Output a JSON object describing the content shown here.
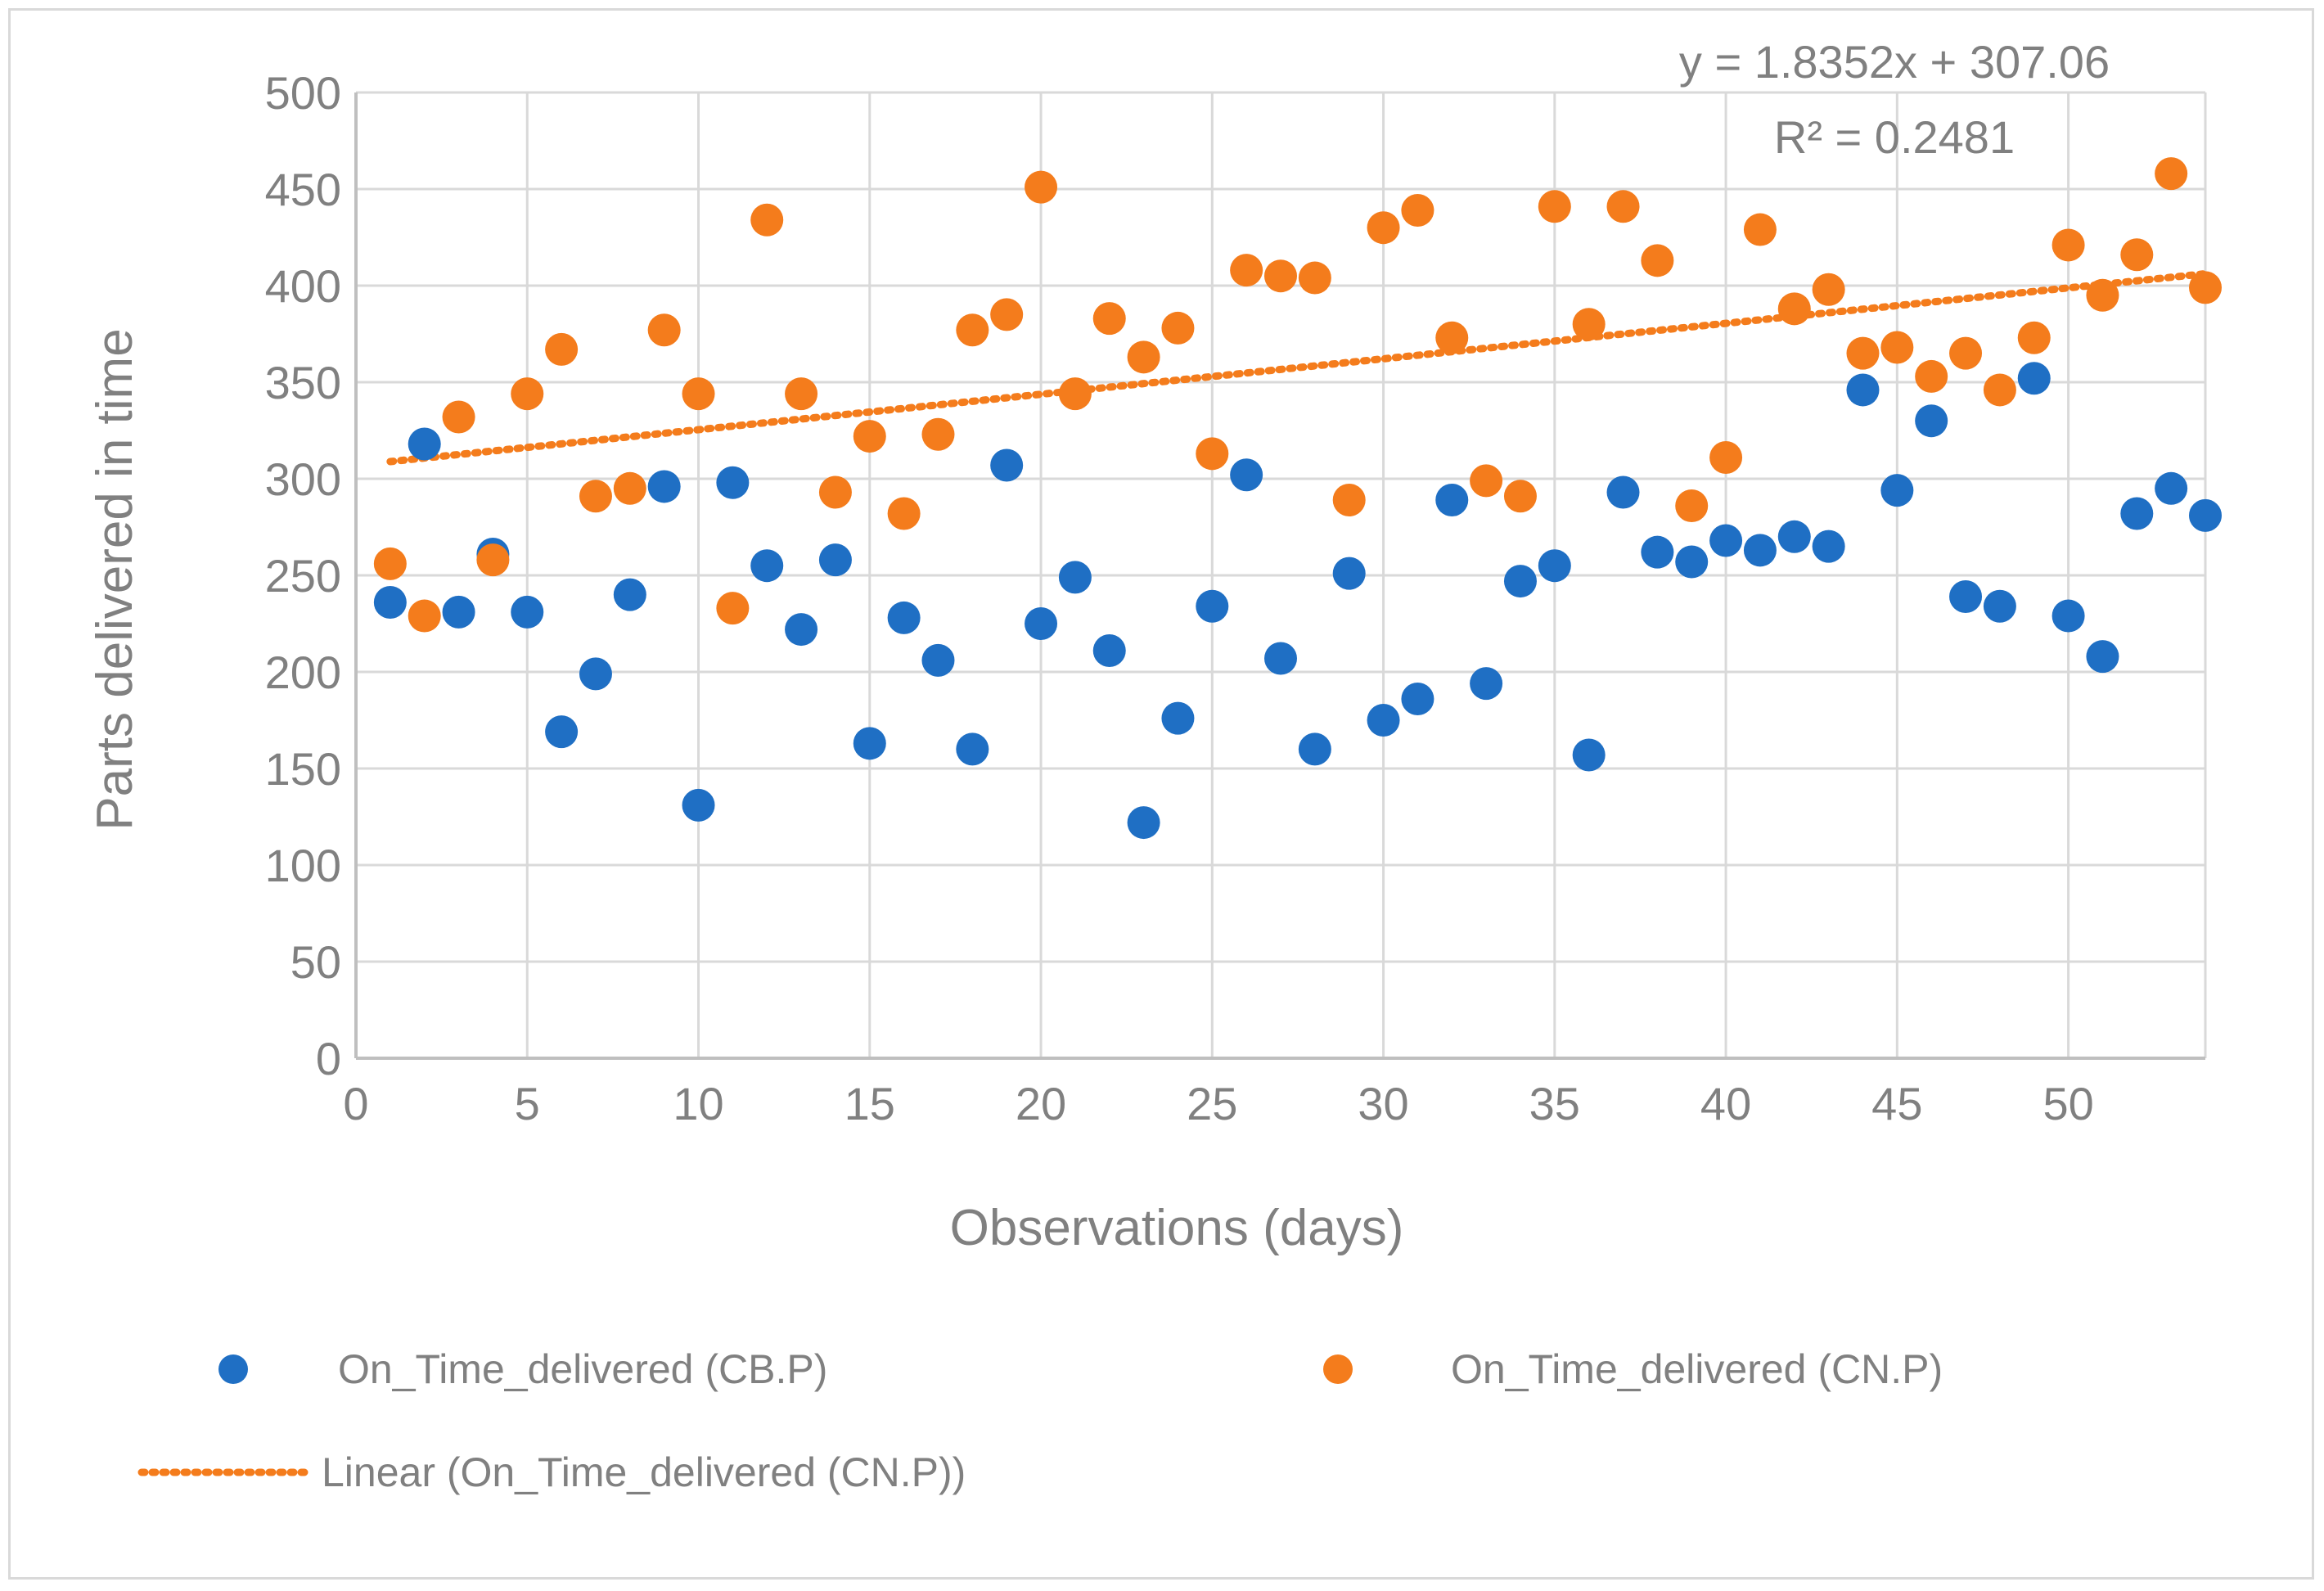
{
  "chart_data": {
    "type": "scatter",
    "title": "",
    "xlabel": "Observations (days)",
    "ylabel": "Parts delivered in time",
    "xlim": [
      0,
      54
    ],
    "ylim": [
      0,
      500
    ],
    "x_ticks": [
      0,
      5,
      10,
      15,
      20,
      25,
      30,
      35,
      40,
      45,
      50
    ],
    "y_ticks": [
      0,
      50,
      100,
      150,
      200,
      250,
      300,
      350,
      400,
      450,
      500
    ],
    "grid": true,
    "legend_position": "bottom",
    "series": [
      {
        "name": "On_Time_delivered (CB.P)",
        "color": "#1f6fc4",
        "x": [
          1,
          2,
          3,
          4,
          5,
          6,
          7,
          8,
          9,
          10,
          11,
          12,
          13,
          14,
          15,
          16,
          17,
          18,
          19,
          20,
          21,
          22,
          23,
          24,
          25,
          26,
          27,
          28,
          29,
          30,
          31,
          32,
          33,
          34,
          35,
          36,
          37,
          38,
          39,
          40,
          41,
          42,
          43,
          44,
          45,
          46,
          47,
          48,
          49,
          50,
          51,
          52,
          53,
          54
        ],
        "y": [
          236,
          318,
          231,
          261,
          231,
          169,
          199,
          240,
          296,
          131,
          298,
          255,
          222,
          258,
          163,
          228,
          206,
          160,
          307,
          225,
          249,
          211,
          122,
          176,
          234,
          302,
          207,
          160,
          251,
          175,
          186,
          289,
          194,
          247,
          255,
          157,
          293,
          262,
          257,
          268,
          263,
          270,
          265,
          346,
          294,
          330,
          239,
          234,
          352,
          229,
          208,
          282,
          295,
          281
        ]
      },
      {
        "name": "On_Time_delivered (CN.P)",
        "color": "#f47c1c",
        "x": [
          1,
          2,
          3,
          4,
          5,
          6,
          7,
          8,
          9,
          10,
          11,
          12,
          13,
          14,
          15,
          16,
          17,
          18,
          19,
          20,
          21,
          22,
          23,
          24,
          25,
          26,
          27,
          28,
          29,
          30,
          31,
          32,
          33,
          34,
          35,
          36,
          37,
          38,
          39,
          40,
          41,
          42,
          43,
          44,
          45,
          46,
          47,
          48,
          49,
          50,
          51,
          52,
          53,
          54
        ],
        "y": [
          256,
          229,
          332,
          258,
          344,
          367,
          291,
          295,
          377,
          344,
          233,
          434,
          344,
          293,
          322,
          282,
          323,
          377,
          385,
          451,
          344,
          383,
          363,
          378,
          313,
          408,
          405,
          404,
          289,
          430,
          439,
          373,
          299,
          291,
          441,
          380,
          441,
          413,
          286,
          311,
          429,
          388,
          398,
          365,
          368,
          353,
          365,
          346,
          373,
          421,
          395,
          416,
          458,
          399
        ]
      }
    ],
    "trendline": {
      "name": "Linear (On_Time_delivered (CN.P))",
      "series": "On_Time_delivered (CN.P)",
      "slope": 1.8352,
      "intercept": 307.06,
      "x_range": [
        1,
        54
      ],
      "color": "#f47c1c",
      "equation_label": "y = 1.8352x + 307.06",
      "r2_label": "R² = 0.2481"
    }
  }
}
